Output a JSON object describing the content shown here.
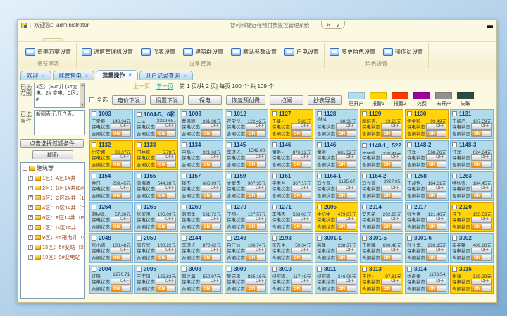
{
  "window": {
    "welcome": "欢迎您：administrator",
    "title": "智利科福远程预付费监控管理系统",
    "close": "✕",
    "chevron": "∨",
    "minimize": "▬"
  },
  "menu": {
    "items": [
      {
        "label": "个人设置"
      },
      {
        "label": "系统配置",
        "active": true
      },
      {
        "label": "用户管理"
      },
      {
        "label": "售电管理"
      },
      {
        "label": "报表中心"
      }
    ]
  },
  "ribbon": {
    "groups": [
      {
        "label": "资费率表",
        "buttons": [
          "费率方案设置"
        ]
      },
      {
        "label": "设备管理",
        "buttons": [
          "通信管理机设置",
          "仪表设置",
          "建筑群设置",
          "默认参数设置",
          "户电设置"
        ]
      },
      {
        "label": "角色设置",
        "buttons": [
          "变更角色设置",
          "操作员设置"
        ]
      }
    ]
  },
  "tabs_meta": {
    "close": "×"
  },
  "doc_tabs": [
    {
      "label": "欢迎"
    },
    {
      "label": "能管售电"
    },
    {
      "label": "批量操作",
      "active": true
    },
    {
      "label": "开户记录查询"
    }
  ],
  "sidebar": {
    "range_label": "已选范围",
    "range_text": "3区：(E2#井 (1#变电、2# 变电、C区1#",
    "cond_label": "已选条件",
    "cond_text": "新网表;已开户表。",
    "filter_button": "点击选择过滤条件",
    "refresh_button": "刷新",
    "scroll_up": "▲",
    "scroll_down": "▼",
    "tree": {
      "root": "建筑群",
      "minus": "-",
      "plus": "+",
      "items": [
        "1区：A区1#井",
        "2区：B区1#井(B区1#...",
        "3区：C区2#井（1#变...",
        "4区：D区1#井（D区1...",
        "6区：F区1#井（F区1#...",
        "7区：G区1#井",
        "9区：4#箱电井（4#箱...",
        "15区：5#变站（3#变...",
        "19区：9#变电站（2#..."
      ]
    }
  },
  "toolbar": {
    "prev": "上一页",
    "next": "下一页",
    "page_info": "第 1 页/共 2 页| 每页 100 个 共 109 个",
    "select_all": "全选",
    "buttons": [
      "电价下发",
      "设置下发",
      "保电",
      "恢复预付费",
      "拉闸",
      "抄表导出"
    ]
  },
  "legend": [
    {
      "label": "已开户",
      "color": "#b5dcec"
    },
    {
      "label": "报警1",
      "color": "#ffd400"
    },
    {
      "label": "报警2",
      "color": "#ff3800"
    },
    {
      "label": "欠费",
      "color": "#a000a0"
    },
    {
      "label": "未开户",
      "color": "#909090"
    },
    {
      "label": "失联",
      "color": "#2e4a48"
    }
  ],
  "card_labels": {
    "power_keep": "保电状态",
    "switch": "合闸状态",
    "on": "ON",
    "off": "OFF"
  },
  "cards": [
    {
      "id": "1003",
      "name": "王爱春",
      "amount": "148.94元",
      "status": "blue"
    },
    {
      "id": "1004-5、6和一",
      "name": "王英",
      "amount": "2329.68..",
      "status": "blue"
    },
    {
      "id": "1008",
      "name": "曹温颖.",
      "amount": "331.08元",
      "status": "blue"
    },
    {
      "id": "1012",
      "name": "农宝仪.",
      "amount": "122.42元",
      "status": "blue"
    },
    {
      "id": "1127",
      "name": "王康~",
      "amount": "5.83元",
      "status": "yellow"
    },
    {
      "id": "1128",
      "name": "-MM.",
      "amount": "88.36元",
      "status": "blue"
    },
    {
      "id": "1129",
      "name": "席培语.",
      "amount": "19.23元",
      "status": "yellow"
    },
    {
      "id": "1130",
      "name": "焦金毅",
      "amount": "99.49元",
      "status": "yellow"
    },
    {
      "id": "1131",
      "name": "王威严.",
      "amount": "137.59元",
      "status": "blue"
    },
    {
      "id": "1132",
      "name": "比安娜.",
      "amount": "36.37元",
      "status": "yellow"
    },
    {
      "id": "1133",
      "name": "田井真.",
      "amount": "5.78元",
      "status": "yellow"
    },
    {
      "id": "1134",
      "name": "申晶~",
      "amount": "921.63元",
      "status": "blue"
    },
    {
      "id": "1145",
      "name": "李瑾光.",
      "amount": "1542.00.",
      "status": "blue"
    },
    {
      "id": "1146",
      "name": "谢艳~",
      "amount": "876.12元",
      "status": "blue"
    },
    {
      "id": "1146",
      "name": "谢艳",
      "amount": "681.52元",
      "status": "blue"
    },
    {
      "id": "1148-1、522",
      "name": "沈丽娟",
      "amount": "330.41元",
      "status": "blue"
    },
    {
      "id": "1148-2",
      "name": "汪洋~",
      "amount": "568.76元",
      "status": "blue"
    },
    {
      "id": "1148-3",
      "name": "汪洋~",
      "amount": "624.64元",
      "status": "blue"
    },
    {
      "id": "1154",
      "name": "金日",
      "amount": "209.45元",
      "status": "blue"
    },
    {
      "id": "1155",
      "name": "唐海清",
      "amount": "544.28元",
      "status": "blue"
    },
    {
      "id": "1157",
      "name": "钱杰",
      "amount": "686.99元",
      "status": "blue"
    },
    {
      "id": "1159",
      "name": "文富贵",
      "amount": "907.35元",
      "status": "blue"
    },
    {
      "id": "1161",
      "name": "平惠兰",
      "amount": "367.17元",
      "status": "blue"
    },
    {
      "id": "1164-1",
      "name": "冯立普.",
      "amount": "1195.67.",
      "status": "blue"
    },
    {
      "id": "1164-2",
      "name": "冯立普",
      "amount": "3927.05.",
      "status": "blue"
    },
    {
      "id": "1258",
      "name": "王昶哲.",
      "amount": "184.31元",
      "status": "blue"
    },
    {
      "id": "1263",
      "name": "特狄雪.",
      "amount": "184.45元",
      "status": "blue"
    },
    {
      "id": "1264",
      "name": "刘M姆.",
      "amount": "57.30元",
      "status": "blue"
    },
    {
      "id": "1265",
      "name": "张家圃",
      "amount": "195.09元",
      "status": "blue"
    },
    {
      "id": "1269",
      "name": "刘国争",
      "amount": "531.72元",
      "status": "blue"
    },
    {
      "id": "1270",
      "name": "王翔~",
      "amount": "127.57元",
      "status": "blue"
    },
    {
      "id": "1271",
      "name": "李伟杰",
      "amount": "533.03元",
      "status": "blue"
    },
    {
      "id": "2005",
      "name": "牛记中",
      "amount": "479.87元",
      "status": "yellow"
    },
    {
      "id": "2014",
      "name": "安思花",
      "amount": "202.95元",
      "status": "blue"
    },
    {
      "id": "2017",
      "name": "钱大伟",
      "amount": "121.40元",
      "status": "blue"
    },
    {
      "id": "2020",
      "name": "佳飞",
      "amount": "155.53元",
      "status": "yellow"
    },
    {
      "id": "2048",
      "name": "张小霞",
      "amount": "108.48元",
      "status": "blue"
    },
    {
      "id": "2050",
      "name": "唐方欣",
      "amount": "190.22元",
      "status": "blue"
    },
    {
      "id": "2144",
      "name": "李瑾光",
      "amount": "870.62元",
      "status": "blue"
    },
    {
      "id": "2148",
      "name": "白江仙",
      "amount": "186.74元",
      "status": "blue"
    },
    {
      "id": "2193",
      "name": "张先生.",
      "amount": "59.34元",
      "status": "blue"
    },
    {
      "id": "3001-1",
      "name": "高隆",
      "amount": "238.37元",
      "status": "blue"
    },
    {
      "id": "3001-5",
      "name": "王殿辉",
      "amount": "690.48元",
      "status": "blue"
    },
    {
      "id": "3001-6",
      "name": "孙长争.",
      "amount": "293.15元",
      "status": "blue"
    },
    {
      "id": "3002",
      "name": "崔英娥",
      "amount": "409.88元",
      "status": "blue"
    },
    {
      "id": "3004",
      "name": "许隆",
      "amount": "2270.71.",
      "status": "blue"
    },
    {
      "id": "3006",
      "name": "王宇铺",
      "amount": "125.83元",
      "status": "blue"
    },
    {
      "id": "3008",
      "name": "周之翼",
      "amount": "550.97元",
      "status": "blue"
    },
    {
      "id": "3009",
      "name": "吴成忠",
      "amount": "885.16元",
      "status": "blue"
    },
    {
      "id": "3010",
      "name": "纪冠霞.",
      "amount": "117.49元",
      "status": "blue"
    },
    {
      "id": "3011",
      "name": "纪冠霞",
      "amount": "346.06元",
      "status": "blue"
    },
    {
      "id": "3013",
      "name": "王欣~",
      "amount": "97.81元",
      "status": "yellow"
    },
    {
      "id": "3014",
      "name": "仇奇争",
      "amount": "1103.54.",
      "status": "blue"
    },
    {
      "id": "3016",
      "name": "谢祥",
      "amount": "339.29元",
      "status": "yellow"
    }
  ]
}
